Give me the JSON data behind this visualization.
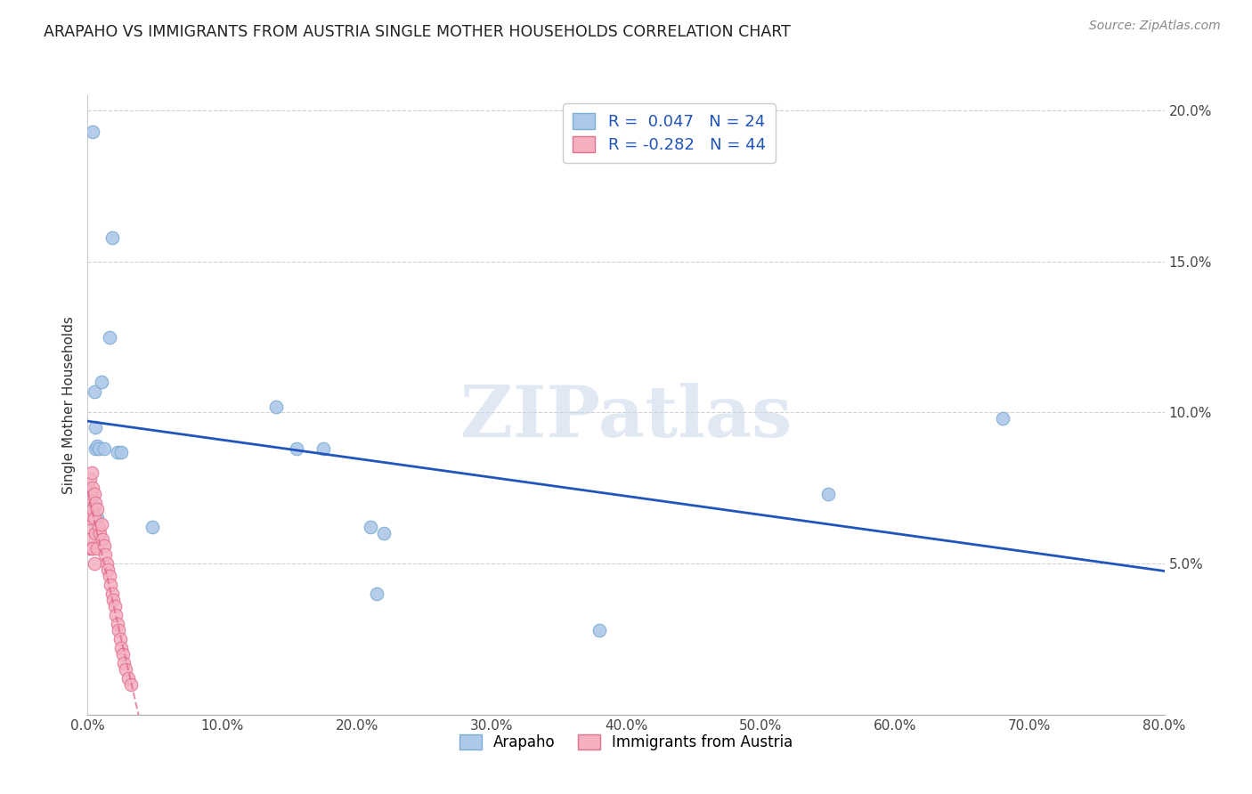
{
  "title": "ARAPAHO VS IMMIGRANTS FROM AUSTRIA SINGLE MOTHER HOUSEHOLDS CORRELATION CHART",
  "source": "Source: ZipAtlas.com",
  "ylabel": "Single Mother Households",
  "xlim": [
    0.0,
    0.8
  ],
  "ylim": [
    0.0,
    0.205
  ],
  "xticks": [
    0.0,
    0.1,
    0.2,
    0.3,
    0.4,
    0.5,
    0.6,
    0.7,
    0.8
  ],
  "xticklabels": [
    "0.0%",
    "10.0%",
    "20.0%",
    "30.0%",
    "40.0%",
    "50.0%",
    "60.0%",
    "70.0%",
    "80.0%"
  ],
  "yticks": [
    0.0,
    0.05,
    0.1,
    0.15,
    0.2
  ],
  "yticklabels": [
    "",
    "5.0%",
    "10.0%",
    "15.0%",
    "20.0%"
  ],
  "arapaho_color": "#adc8e8",
  "arapaho_edge": "#7aadd4",
  "austria_color": "#f5b0c0",
  "austria_edge": "#e07090",
  "trendline_arapaho_color": "#2255bb",
  "trendline_austria_color": "#dd6688",
  "legend_r_arapaho": " 0.047",
  "legend_n_arapaho": "24",
  "legend_r_austria": "-0.282",
  "legend_n_austria": "44",
  "legend_label_arapaho": "Arapaho",
  "legend_label_austria": "Immigrants from Austria",
  "watermark": "ZIPatlas",
  "arapaho_x": [
    0.004,
    0.005,
    0.006,
    0.006,
    0.007,
    0.008,
    0.01,
    0.012,
    0.016,
    0.018,
    0.022,
    0.025,
    0.048,
    0.14,
    0.155,
    0.175,
    0.21,
    0.215,
    0.22,
    0.38,
    0.55,
    0.68,
    0.005,
    0.007
  ],
  "arapaho_y": [
    0.193,
    0.107,
    0.088,
    0.095,
    0.089,
    0.088,
    0.11,
    0.088,
    0.125,
    0.158,
    0.087,
    0.087,
    0.062,
    0.102,
    0.088,
    0.088,
    0.062,
    0.04,
    0.06,
    0.028,
    0.073,
    0.098,
    0.069,
    0.065
  ],
  "austria_x": [
    0.001,
    0.001,
    0.001,
    0.002,
    0.002,
    0.002,
    0.002,
    0.003,
    0.003,
    0.003,
    0.003,
    0.004,
    0.004,
    0.004,
    0.005,
    0.005,
    0.005,
    0.006,
    0.006,
    0.007,
    0.007,
    0.008,
    0.009,
    0.01,
    0.011,
    0.012,
    0.013,
    0.014,
    0.015,
    0.016,
    0.017,
    0.018,
    0.019,
    0.02,
    0.021,
    0.022,
    0.023,
    0.024,
    0.025,
    0.026,
    0.027,
    0.028,
    0.03,
    0.032
  ],
  "austria_y": [
    0.075,
    0.062,
    0.055,
    0.078,
    0.072,
    0.065,
    0.058,
    0.08,
    0.073,
    0.066,
    0.055,
    0.075,
    0.068,
    0.055,
    0.073,
    0.065,
    0.05,
    0.07,
    0.06,
    0.068,
    0.055,
    0.062,
    0.06,
    0.063,
    0.058,
    0.056,
    0.053,
    0.05,
    0.048,
    0.046,
    0.043,
    0.04,
    0.038,
    0.036,
    0.033,
    0.03,
    0.028,
    0.025,
    0.022,
    0.02,
    0.017,
    0.015,
    0.012,
    0.01
  ],
  "arapaho_trendline_x": [
    0.0,
    0.8
  ],
  "austria_trendline_x_max": 0.16
}
